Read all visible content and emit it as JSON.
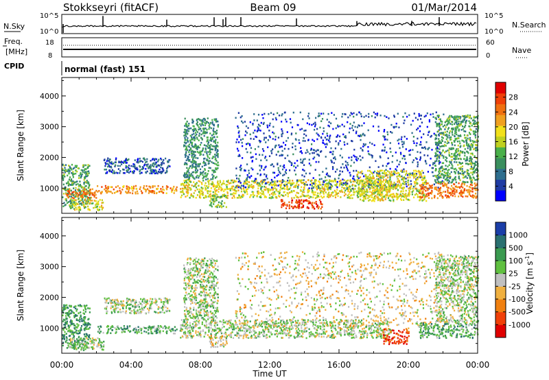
{
  "header": {
    "station": "Stokkseyri (fitACF)",
    "beam": "Beam 09",
    "date": "01/Mar/2014"
  },
  "panels": {
    "nsky": {
      "label": "N.Sky",
      "ticks": [
        "10^5",
        "10^0"
      ]
    },
    "nsearch": {
      "label": "N.Search",
      "ticks": [
        "10^5",
        "10^0"
      ]
    },
    "freq": {
      "label1": "Freq.",
      "label2": "[MHz]",
      "ticks": [
        "18",
        "8"
      ]
    },
    "nave": {
      "label": "Nave",
      "ticks": [
        "60",
        "0"
      ]
    },
    "cpid": {
      "label": "CPID",
      "value": "normal (fast) 151"
    }
  },
  "chart_data": [
    {
      "type": "heatmap",
      "title": "",
      "xlabel": "Time UT",
      "ylabel": "Slant Range [km]",
      "xticks": [
        "00:00",
        "04:00",
        "08:00",
        "12:00",
        "16:00",
        "20:00",
        "00:00"
      ],
      "xlim_hours": [
        0,
        24
      ],
      "yticks": [
        1000,
        2000,
        3000,
        4000
      ],
      "ylim": [
        180,
        4600
      ],
      "colorbar": {
        "label": "Power [dB]",
        "ticks": [
          "4",
          "8",
          "12",
          "16",
          "20",
          "24",
          "28"
        ],
        "colors": [
          "#0000ff",
          "#1f3ba3",
          "#2e6e8e",
          "#3a8f5e",
          "#4ab04a",
          "#c0d020",
          "#f2e01a",
          "#f0a020",
          "#f07010",
          "#f04008",
          "#e00000"
        ]
      },
      "echo_regions": [
        {
          "t0": 0.0,
          "t1": 1.6,
          "r0": 380,
          "r1": 1800,
          "v": 0.35
        },
        {
          "t0": 0.2,
          "t1": 2.0,
          "r0": 700,
          "r1": 1000,
          "v": 0.8
        },
        {
          "t0": 0.4,
          "t1": 2.4,
          "r0": 300,
          "r1": 650,
          "v": 0.55
        },
        {
          "t0": 2.0,
          "t1": 6.6,
          "r0": 850,
          "r1": 1100,
          "v": 0.75
        },
        {
          "t0": 2.4,
          "t1": 6.2,
          "r0": 1500,
          "r1": 2000,
          "v": 0.15
        },
        {
          "t0": 6.8,
          "t1": 19.0,
          "r0": 700,
          "r1": 1300,
          "v": 0.55
        },
        {
          "t0": 7.0,
          "t1": 9.0,
          "r0": 1300,
          "r1": 3300,
          "v": 0.3
        },
        {
          "t0": 8.5,
          "t1": 9.5,
          "r0": 400,
          "r1": 800,
          "v": 0.4
        },
        {
          "t0": 12.6,
          "t1": 15.0,
          "r0": 350,
          "r1": 650,
          "v": 0.9
        },
        {
          "t0": 10.0,
          "t1": 22.0,
          "r0": 1000,
          "r1": 3500,
          "v": 0.12
        },
        {
          "t0": 17.0,
          "t1": 21.0,
          "r0": 600,
          "r1": 1600,
          "v": 0.55
        },
        {
          "t0": 20.6,
          "t1": 24.0,
          "r0": 700,
          "r1": 1200,
          "v": 0.8
        },
        {
          "t0": 21.5,
          "t1": 24.0,
          "r0": 1200,
          "r1": 3400,
          "v": 0.35
        }
      ]
    },
    {
      "type": "heatmap",
      "title": "",
      "xlabel": "Time UT",
      "ylabel": "Slant Range [km]",
      "xticks": [
        "00:00",
        "04:00",
        "08:00",
        "12:00",
        "16:00",
        "20:00",
        "00:00"
      ],
      "xlim_hours": [
        0,
        24
      ],
      "yticks": [
        1000,
        2000,
        3000,
        4000
      ],
      "ylim": [
        180,
        4600
      ],
      "colorbar": {
        "label": "Velocity [m s^-1]",
        "ticks": [
          "1000",
          "500",
          "100",
          "25",
          "-25",
          "-100",
          "-500",
          "-1000"
        ],
        "colors": [
          "#1b3ea8",
          "#2a7070",
          "#3a9a50",
          "#60c040",
          "#c0c0c0",
          "#f0b040",
          "#f08010",
          "#f04008",
          "#e00000"
        ]
      },
      "echo_regions": [
        {
          "t0": 0.0,
          "t1": 1.6,
          "r0": 380,
          "r1": 1800,
          "v": 0.25
        },
        {
          "t0": 0.3,
          "t1": 2.4,
          "r0": 300,
          "r1": 700,
          "v": 0.45
        },
        {
          "t0": 2.0,
          "t1": 6.6,
          "r0": 850,
          "r1": 1100,
          "v": 0.3
        },
        {
          "t0": 2.4,
          "t1": 6.2,
          "r0": 1500,
          "r1": 2000,
          "v": 0.45
        },
        {
          "t0": 6.8,
          "t1": 19.0,
          "r0": 700,
          "r1": 1300,
          "v": 0.45
        },
        {
          "t0": 7.0,
          "t1": 9.0,
          "r0": 1300,
          "r1": 3300,
          "v": 0.45
        },
        {
          "t0": 8.5,
          "t1": 9.5,
          "r0": 400,
          "r1": 800,
          "v": 0.6
        },
        {
          "t0": 10.0,
          "t1": 22.0,
          "r0": 1000,
          "r1": 3500,
          "v": 0.55
        },
        {
          "t0": 18.5,
          "t1": 20.0,
          "r0": 500,
          "r1": 1000,
          "v": 0.9
        },
        {
          "t0": 20.6,
          "t1": 24.0,
          "r0": 700,
          "r1": 1200,
          "v": 0.3
        },
        {
          "t0": 21.5,
          "t1": 24.0,
          "r0": 1200,
          "r1": 3400,
          "v": 0.45
        }
      ]
    }
  ]
}
